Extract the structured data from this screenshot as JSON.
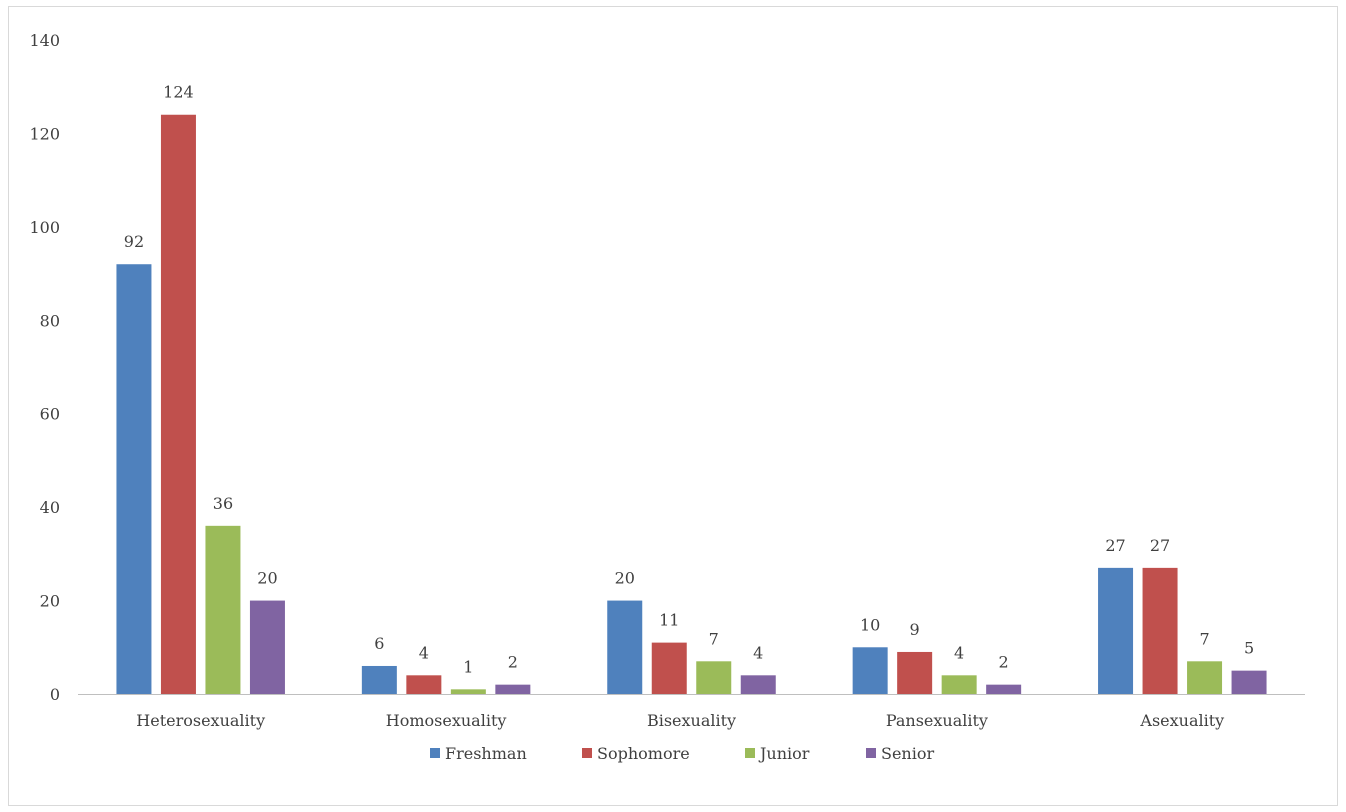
{
  "chart_data": {
    "type": "bar",
    "categories": [
      "Heterosexuality",
      "Homosexuality",
      "Bisexuality",
      "Pansexuality",
      "Asexuality"
    ],
    "series": [
      {
        "name": "Freshman",
        "color": "#4f81bd",
        "values": [
          92,
          6,
          20,
          10,
          27
        ]
      },
      {
        "name": "Sophomore",
        "color": "#c0504d",
        "values": [
          124,
          4,
          11,
          9,
          27
        ]
      },
      {
        "name": "Junior",
        "color": "#9bbb59",
        "values": [
          36,
          1,
          7,
          4,
          7
        ]
      },
      {
        "name": "Senior",
        "color": "#8064a2",
        "values": [
          20,
          2,
          4,
          2,
          5
        ]
      }
    ],
    "ylim": [
      0,
      140
    ],
    "yticks": [
      0,
      20,
      40,
      60,
      80,
      100,
      120,
      140
    ],
    "grid": false,
    "legend": "bottom",
    "data_labels": true
  }
}
